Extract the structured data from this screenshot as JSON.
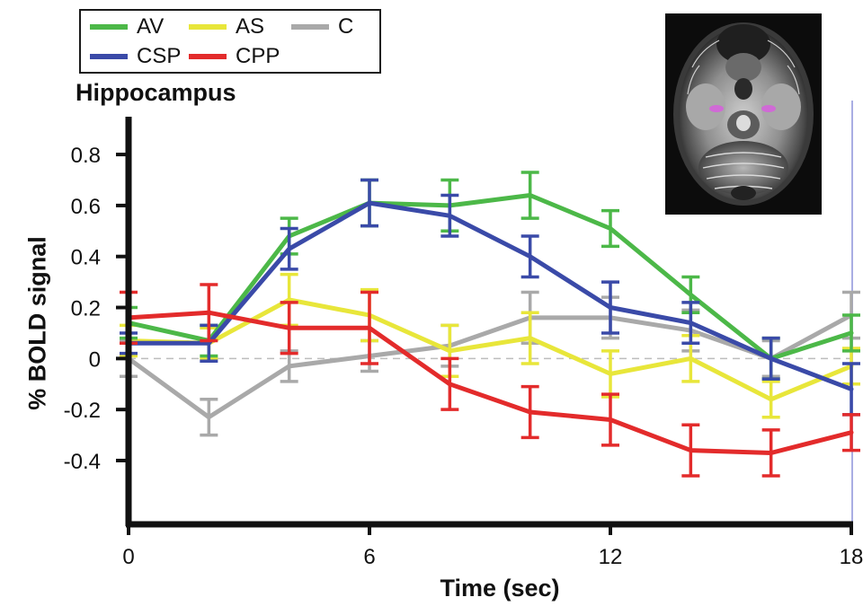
{
  "chart_data": {
    "type": "line",
    "title": "Hippocampus",
    "xlabel": "Time (sec)",
    "ylabel": "% BOLD signal",
    "x": [
      0,
      2,
      4,
      6,
      8,
      10,
      12,
      14,
      16,
      18
    ],
    "xticks": [
      0,
      6,
      12,
      18
    ],
    "xtick_labels": [
      "0",
      "6",
      "12",
      "18"
    ],
    "xlim": [
      0,
      18
    ],
    "yticks": [
      0.8,
      0.6,
      0.4,
      0.2,
      0,
      -0.2,
      -0.4
    ],
    "ytick_labels": [
      "0.8",
      "0.6",
      "0.4",
      "0.2",
      "0",
      "-0.2",
      "-0.4"
    ],
    "ylim": [
      -0.65,
      0.92
    ],
    "zero_line": "dashed",
    "legend_position": "top-left",
    "series": [
      {
        "name": "C",
        "color": "#a9a9a9",
        "values": [
          0.0,
          -0.23,
          -0.03,
          0.01,
          0.05,
          0.16,
          0.16,
          0.11,
          0.0,
          0.17
        ],
        "errors": [
          0.07,
          0.07,
          0.06,
          0.06,
          0.08,
          0.1,
          0.08,
          0.08,
          0.07,
          0.09
        ]
      },
      {
        "name": "AS",
        "color": "#e8e63a",
        "values": [
          0.07,
          0.06,
          0.23,
          0.17,
          0.03,
          0.08,
          -0.06,
          0.0,
          -0.16,
          -0.03
        ],
        "errors": [
          0.06,
          0.06,
          0.1,
          0.1,
          0.1,
          0.1,
          0.09,
          0.09,
          0.07,
          0.07
        ]
      },
      {
        "name": "AV",
        "color": "#4cb848",
        "values": [
          0.14,
          0.07,
          0.48,
          0.61,
          0.6,
          0.64,
          0.51,
          0.25,
          0.0,
          0.1
        ],
        "errors": [
          0.06,
          0.06,
          0.07,
          0.09,
          0.1,
          0.09,
          0.07,
          0.07,
          0.08,
          0.07
        ]
      },
      {
        "name": "CSP",
        "color": "#3a4aa8",
        "values": [
          0.06,
          0.06,
          0.43,
          0.61,
          0.56,
          0.4,
          0.2,
          0.14,
          0.0,
          -0.12
        ],
        "errors": [
          0.04,
          0.07,
          0.08,
          0.09,
          0.08,
          0.08,
          0.1,
          0.08,
          0.08,
          0.1
        ]
      },
      {
        "name": "CPP",
        "color": "#e32b2b",
        "values": [
          0.16,
          0.18,
          0.12,
          0.12,
          -0.1,
          -0.21,
          -0.24,
          -0.36,
          -0.37,
          -0.29
        ],
        "errors": [
          0.1,
          0.11,
          0.1,
          0.14,
          0.1,
          0.1,
          0.1,
          0.1,
          0.09,
          0.07
        ]
      }
    ]
  },
  "legend": [
    {
      "label": "AV",
      "color": "#4cb848"
    },
    {
      "label": "AS",
      "color": "#e8e63a"
    },
    {
      "label": "C",
      "color": "#a9a9a9"
    },
    {
      "label": "CSP",
      "color": "#3a4aa8"
    },
    {
      "label": "CPP",
      "color": "#e32b2b"
    }
  ],
  "roi_color": "#d06ad6"
}
